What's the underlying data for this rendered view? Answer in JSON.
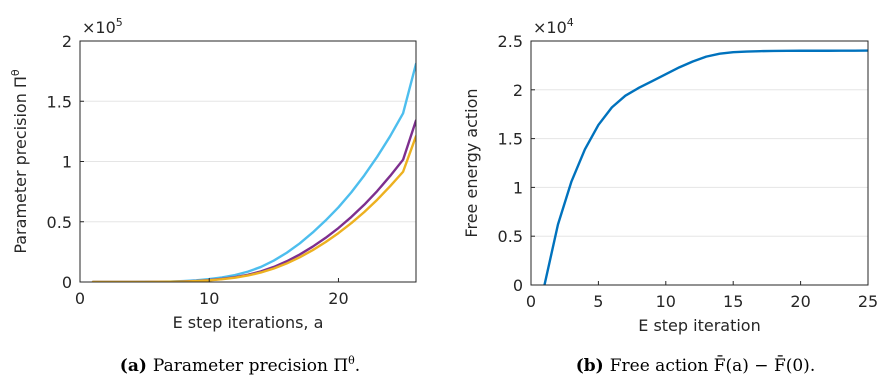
{
  "chart_data": [
    {
      "type": "line",
      "ylabel": "Parameter precision Π",
      "ylabel_sup": "θ",
      "xlabel": "E step iterations, a",
      "exponent_base": "×10",
      "exponent_power": "5",
      "xlim": [
        0,
        26
      ],
      "ylim": [
        0,
        2
      ],
      "xticks": [
        "0",
        "10",
        "20"
      ],
      "yticks": [
        "0",
        "0.5",
        "1",
        "1.5",
        "2"
      ],
      "grid": true,
      "caption_label": "(a)",
      "caption_text": "Parameter precision Π",
      "caption_sup": "θ",
      "caption_end": ".",
      "series": [
        {
          "color": "#4DBEEE",
          "x": [
            1,
            2,
            3,
            4,
            5,
            6,
            7,
            8,
            9,
            10,
            11,
            12,
            13,
            14,
            15,
            16,
            17,
            18,
            19,
            20,
            21,
            22,
            23,
            24,
            25,
            26
          ],
          "values": [
            0,
            0,
            0,
            0,
            0.001,
            0.002,
            0.004,
            0.008,
            0.014,
            0.024,
            0.038,
            0.058,
            0.086,
            0.125,
            0.178,
            0.243,
            0.32,
            0.41,
            0.51,
            0.62,
            0.745,
            0.885,
            1.04,
            1.21,
            1.4,
            1.81
          ]
        },
        {
          "color": "#7E2F8E",
          "x": [
            1,
            2,
            3,
            4,
            5,
            6,
            7,
            8,
            9,
            10,
            11,
            12,
            13,
            14,
            15,
            16,
            17,
            18,
            19,
            20,
            21,
            22,
            23,
            24,
            25,
            26
          ],
          "values": [
            0,
            0,
            0,
            0,
            0,
            0.001,
            0.002,
            0.005,
            0.009,
            0.016,
            0.026,
            0.04,
            0.06,
            0.088,
            0.125,
            0.172,
            0.228,
            0.293,
            0.366,
            0.448,
            0.54,
            0.642,
            0.755,
            0.88,
            1.015,
            1.34
          ]
        },
        {
          "color": "#EDB120",
          "x": [
            1,
            2,
            3,
            4,
            5,
            6,
            7,
            8,
            9,
            10,
            11,
            12,
            13,
            14,
            15,
            16,
            17,
            18,
            19,
            20,
            21,
            22,
            23,
            24,
            25,
            26
          ],
          "values": [
            0,
            0,
            0,
            0,
            0,
            0.001,
            0.002,
            0.004,
            0.008,
            0.014,
            0.023,
            0.036,
            0.054,
            0.079,
            0.112,
            0.154,
            0.205,
            0.264,
            0.331,
            0.406,
            0.489,
            0.581,
            0.683,
            0.795,
            0.915,
            1.21
          ]
        }
      ]
    },
    {
      "type": "line",
      "ylabel": "Free energy action",
      "xlabel": "E step iteration",
      "exponent_base": "×10",
      "exponent_power": "4",
      "xlim": [
        0,
        25
      ],
      "ylim": [
        0,
        2.5
      ],
      "xticks": [
        "0",
        "5",
        "10",
        "15",
        "20",
        "25"
      ],
      "yticks": [
        "0",
        "0.5",
        "1",
        "1.5",
        "2",
        "2.5"
      ],
      "grid": true,
      "caption_label": "(b)",
      "caption_text": "Free action F̄(a) − F̄(0).",
      "series": [
        {
          "color": "#0072BD",
          "x": [
            1,
            2,
            3,
            4,
            5,
            6,
            7,
            8,
            9,
            10,
            11,
            12,
            13,
            14,
            15,
            16,
            17,
            18,
            19,
            20,
            21,
            22,
            23,
            24,
            25
          ],
          "values": [
            0,
            0.62,
            1.06,
            1.39,
            1.64,
            1.82,
            1.94,
            2.02,
            2.09,
            2.16,
            2.23,
            2.29,
            2.34,
            2.37,
            2.385,
            2.392,
            2.396,
            2.398,
            2.399,
            2.4,
            2.4,
            2.4,
            2.401,
            2.401,
            2.402
          ]
        }
      ]
    }
  ]
}
